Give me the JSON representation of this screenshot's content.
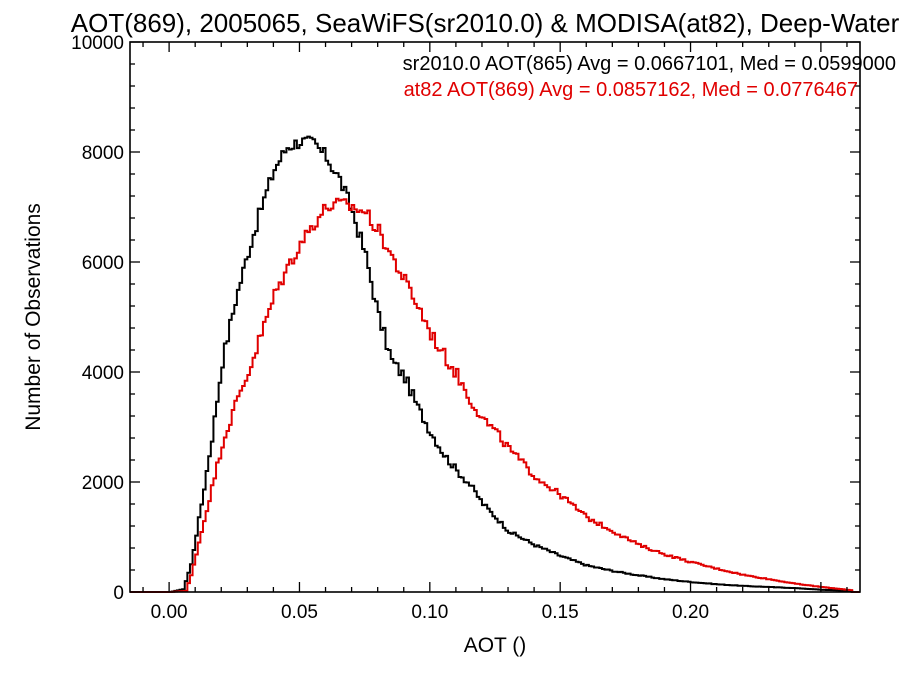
{
  "chart_data": {
    "type": "line",
    "title": "AOT(869), 2005065, SeaWiFS(sr2010.0) & MODISA(at82), Deep-Water",
    "xlabel": "AOT ()",
    "ylabel": "Number of Observations",
    "xlim": [
      -0.015,
      0.265
    ],
    "ylim": [
      0,
      10000
    ],
    "x_ticks": [
      0.0,
      0.05,
      0.1,
      0.15,
      0.2,
      0.25
    ],
    "x_tick_labels": [
      "0.00",
      "0.05",
      "0.10",
      "0.15",
      "0.20",
      "0.25"
    ],
    "y_ticks": [
      0,
      2000,
      4000,
      6000,
      8000,
      10000
    ],
    "y_tick_labels": [
      "0",
      "2000",
      "4000",
      "6000",
      "8000",
      "10000"
    ],
    "step": true,
    "grid": false,
    "legend_position": "top-right",
    "series": [
      {
        "name": "sr2010.0 AOT(865) Avg = 0.0667101, Med = 0.0599000",
        "color": "#000000",
        "x": [
          -0.015,
          0.0,
          0.005,
          0.008,
          0.012,
          0.016,
          0.02,
          0.025,
          0.03,
          0.035,
          0.04,
          0.045,
          0.05,
          0.055,
          0.06,
          0.065,
          0.07,
          0.075,
          0.08,
          0.085,
          0.09,
          0.095,
          0.1,
          0.105,
          0.11,
          0.115,
          0.12,
          0.125,
          0.13,
          0.14,
          0.15,
          0.16,
          0.17,
          0.18,
          0.19,
          0.2,
          0.21,
          0.22,
          0.23,
          0.24,
          0.25,
          0.262
        ],
        "y": [
          0,
          0,
          50,
          500,
          1600,
          2800,
          4200,
          5300,
          6200,
          7000,
          7700,
          8100,
          8200,
          8150,
          7900,
          7500,
          6900,
          6100,
          5000,
          4200,
          3900,
          3350,
          2900,
          2500,
          2200,
          1950,
          1600,
          1350,
          1100,
          850,
          650,
          480,
          380,
          300,
          230,
          180,
          140,
          110,
          90,
          70,
          40,
          20
        ]
      },
      {
        "name": "at82 AOT(869) Avg = 0.0857162, Med = 0.0776467",
        "color": "#e00000",
        "x": [
          -0.015,
          0.0,
          0.006,
          0.008,
          0.01,
          0.015,
          0.02,
          0.025,
          0.03,
          0.035,
          0.04,
          0.045,
          0.05,
          0.055,
          0.06,
          0.065,
          0.07,
          0.075,
          0.08,
          0.085,
          0.09,
          0.095,
          0.1,
          0.105,
          0.11,
          0.115,
          0.12,
          0.125,
          0.13,
          0.135,
          0.14,
          0.15,
          0.16,
          0.17,
          0.18,
          0.19,
          0.2,
          0.21,
          0.22,
          0.23,
          0.24,
          0.25,
          0.262
        ],
        "y": [
          0,
          0,
          20,
          300,
          700,
          1700,
          2700,
          3400,
          4000,
          4700,
          5400,
          5900,
          6350,
          6700,
          7000,
          7050,
          7000,
          6900,
          6550,
          6100,
          5650,
          5200,
          4700,
          4300,
          3950,
          3500,
          3150,
          2900,
          2600,
          2350,
          2100,
          1750,
          1350,
          1100,
          850,
          680,
          540,
          420,
          310,
          230,
          150,
          90,
          30
        ]
      }
    ]
  }
}
